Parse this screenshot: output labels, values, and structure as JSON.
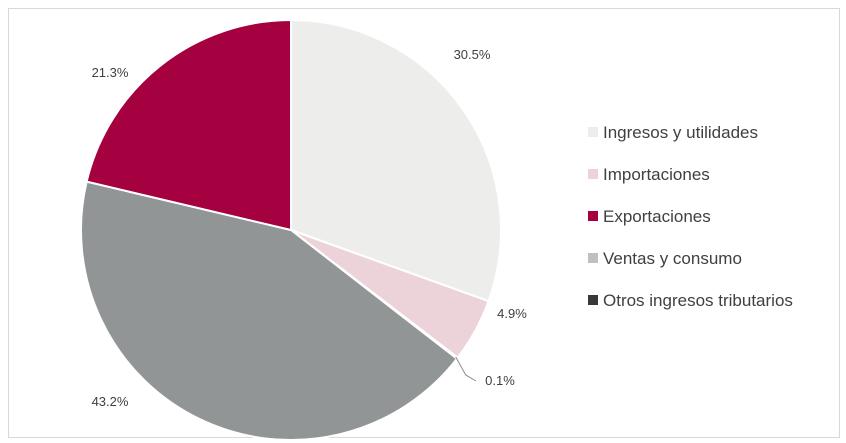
{
  "chart_data": {
    "type": "pie",
    "title": "",
    "slices": [
      {
        "name": "Ingresos y utilidades",
        "value": 30.5,
        "label": "30.5%",
        "color": "#ededeb"
      },
      {
        "name": "Importaciones",
        "value": 4.9,
        "label": "4.9%",
        "color": "#ecd3da"
      },
      {
        "name": "Exportaciones",
        "value": 0.1,
        "label": "0.1%",
        "color": "#a5003f"
      },
      {
        "name": "Ventas y consumo",
        "value": 43.2,
        "label": "43.2%",
        "color": "#929596"
      },
      {
        "name": "Otros ingresos tributarios",
        "value": 21.3,
        "label": "21.3%",
        "color": "#383838"
      }
    ],
    "legend": {
      "position": "right",
      "items": [
        {
          "label": "Ingresos y utilidades",
          "color": "#ededeb"
        },
        {
          "label": "Importaciones",
          "color": "#ecd3da"
        },
        {
          "label": "Exportaciones",
          "color": "#a5003f"
        },
        {
          "label": "Ventas y consumo",
          "color": "#c0c0c0"
        },
        {
          "label": "Otros ingresos tributarios",
          "color": "#383838"
        }
      ]
    },
    "slice_render_colors": [
      "#ededeb",
      "#ecd3da",
      "#ffffff",
      "#929596",
      "#a5003f"
    ]
  }
}
